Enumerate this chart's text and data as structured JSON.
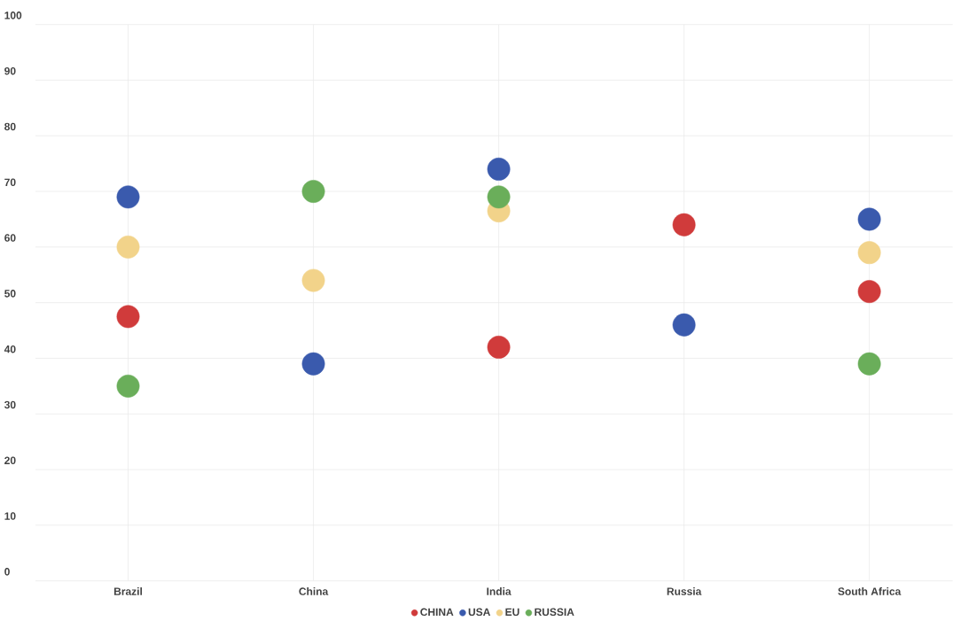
{
  "chart_data": {
    "type": "scatter",
    "categories": [
      "Brazil",
      "China",
      "India",
      "Russia",
      "South Africa"
    ],
    "series": [
      {
        "name": "CHINA",
        "color": "#d03b3b",
        "values": [
          47.5,
          null,
          42,
          64,
          52
        ]
      },
      {
        "name": "USA",
        "color": "#3a5aad",
        "values": [
          69,
          39,
          74,
          46,
          65
        ]
      },
      {
        "name": "EU",
        "color": "#f2d38a",
        "values": [
          60,
          54,
          66.5,
          null,
          59
        ]
      },
      {
        "name": "RUSSIA",
        "color": "#6aae5a",
        "values": [
          35,
          70,
          69,
          null,
          39
        ]
      }
    ],
    "ylim": [
      0,
      100
    ],
    "yticks": [
      0,
      10,
      20,
      30,
      40,
      50,
      60,
      70,
      80,
      90,
      100
    ],
    "grid": true,
    "legend": "bottom"
  }
}
